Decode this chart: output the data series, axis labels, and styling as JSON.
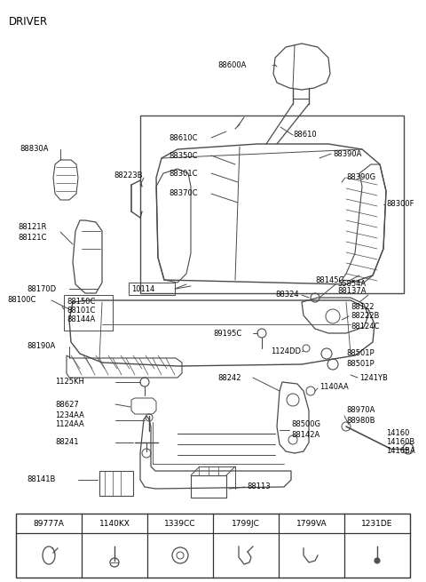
{
  "title": "DRIVER",
  "bg_color": "#ffffff",
  "line_color": "#4a4a4a",
  "text_color": "#000000",
  "figsize": [
    4.8,
    6.55
  ],
  "dpi": 100,
  "font_size_label": 6.0,
  "font_size_title": 8.5,
  "bottom_table_cols": [
    "89777A",
    "1140KX",
    "1339CC",
    "1799JC",
    "1799VA",
    "1231DE"
  ]
}
